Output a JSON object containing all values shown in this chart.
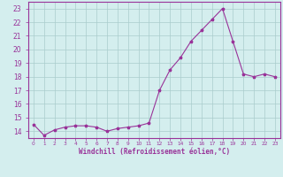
{
  "x": [
    0,
    1,
    2,
    3,
    4,
    5,
    6,
    7,
    8,
    9,
    10,
    11,
    12,
    13,
    14,
    15,
    16,
    17,
    18,
    19,
    20,
    21,
    22,
    23
  ],
  "y": [
    14.5,
    13.7,
    14.1,
    14.3,
    14.4,
    14.4,
    14.3,
    14.0,
    14.2,
    14.3,
    14.4,
    14.6,
    17.0,
    18.5,
    19.4,
    20.6,
    21.4,
    22.2,
    23.0,
    20.6,
    18.2,
    18.0,
    18.2,
    18.0
  ],
  "line_color": "#993399",
  "marker": "*",
  "bg_color": "#d4eeee",
  "grid_color": "#aacccc",
  "xlabel": "Windchill (Refroidissement éolien,°C)",
  "ylabel_ticks": [
    14,
    15,
    16,
    17,
    18,
    19,
    20,
    21,
    22,
    23
  ],
  "xlim": [
    -0.5,
    23.5
  ],
  "ylim": [
    13.5,
    23.5
  ],
  "xtick_labels": [
    "0",
    "1",
    "2",
    "3",
    "4",
    "5",
    "6",
    "7",
    "8",
    "9",
    "10",
    "11",
    "12",
    "13",
    "14",
    "15",
    "16",
    "17",
    "18",
    "19",
    "20",
    "21",
    "22",
    "23"
  ],
  "axis_color": "#993399",
  "font_color": "#993399"
}
